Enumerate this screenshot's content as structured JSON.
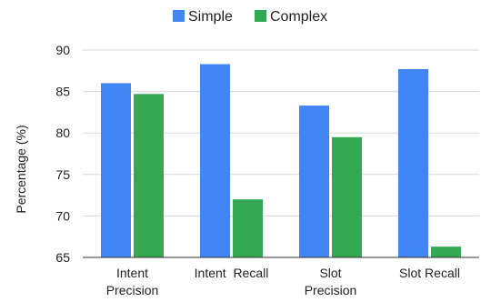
{
  "chart_data": {
    "type": "bar",
    "title": "",
    "xlabel": "",
    "ylabel": "Percentage (%)",
    "ylim": [
      65,
      90
    ],
    "yticks": [
      65,
      70,
      75,
      80,
      85,
      90
    ],
    "grid": true,
    "legend_position": "top-center",
    "categories": [
      [
        "Intent",
        "Precision"
      ],
      [
        "Intent  Recall"
      ],
      [
        "Slot",
        "Precision"
      ],
      [
        "Slot Recall"
      ]
    ],
    "series": [
      {
        "name": "Simple",
        "color": "#4285f4",
        "values": [
          86.0,
          88.3,
          83.3,
          87.7
        ]
      },
      {
        "name": "Complex",
        "color": "#34a853",
        "values": [
          84.7,
          72.0,
          79.5,
          66.3
        ]
      }
    ]
  }
}
